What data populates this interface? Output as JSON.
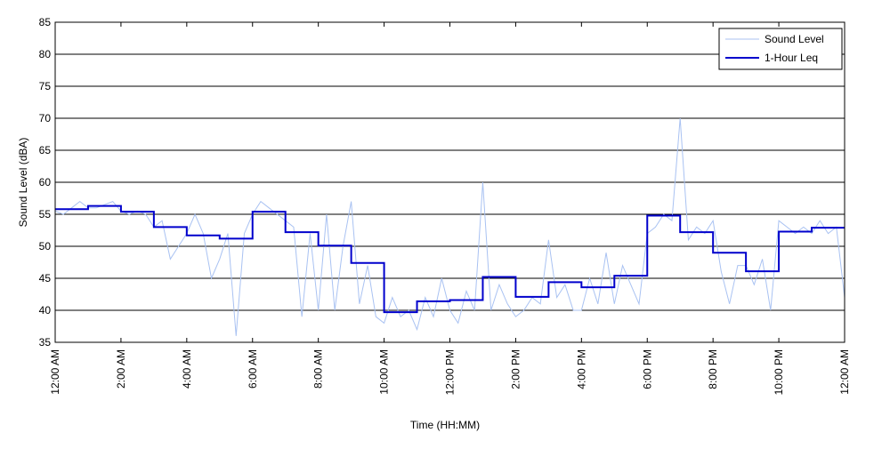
{
  "chart_data": {
    "type": "line",
    "xlabel": "Time (HH:MM)",
    "ylabel": "Sound Level (dBA)",
    "xlim": [
      0,
      24
    ],
    "ylim": [
      35,
      85
    ],
    "yticks": [
      35,
      40,
      45,
      50,
      55,
      60,
      65,
      70,
      75,
      80,
      85
    ],
    "xticks": [
      {
        "value": 0,
        "label": "12:00 AM"
      },
      {
        "value": 2,
        "label": "2:00 AM"
      },
      {
        "value": 4,
        "label": "4:00 AM"
      },
      {
        "value": 6,
        "label": "6:00 AM"
      },
      {
        "value": 8,
        "label": "8:00 AM"
      },
      {
        "value": 10,
        "label": "10:00 AM"
      },
      {
        "value": 12,
        "label": "12:00 PM"
      },
      {
        "value": 14,
        "label": "2:00 PM"
      },
      {
        "value": 16,
        "label": "4:00 PM"
      },
      {
        "value": 18,
        "label": "6:00 PM"
      },
      {
        "value": 20,
        "label": "8:00 PM"
      },
      {
        "value": 22,
        "label": "10:00 PM"
      },
      {
        "value": 24,
        "label": "12:00 AM"
      }
    ],
    "grid": "y",
    "legend": "upper right",
    "series": [
      {
        "name": "Sound Level",
        "color": "#a9c2f2",
        "step": false,
        "x": [
          0,
          0.25,
          0.5,
          0.75,
          1,
          1.25,
          1.5,
          1.75,
          2,
          2.25,
          2.5,
          2.75,
          3,
          3.25,
          3.5,
          3.75,
          4,
          4.25,
          4.5,
          4.75,
          5,
          5.25,
          5.5,
          5.75,
          6,
          6.25,
          6.5,
          6.75,
          7,
          7.25,
          7.5,
          7.75,
          8,
          8.25,
          8.5,
          8.75,
          9,
          9.25,
          9.5,
          9.75,
          10,
          10.25,
          10.5,
          10.75,
          11,
          11.25,
          11.5,
          11.75,
          12,
          12.25,
          12.5,
          12.75,
          13,
          13.25,
          13.5,
          13.75,
          14,
          14.25,
          14.5,
          14.75,
          15,
          15.25,
          15.5,
          15.75,
          16,
          16.25,
          16.5,
          16.75,
          17,
          17.25,
          17.5,
          17.75,
          18,
          18.25,
          18.5,
          18.75,
          19,
          19.25,
          19.5,
          19.75,
          20,
          20.25,
          20.5,
          20.75,
          21,
          21.25,
          21.5,
          21.75,
          22,
          22.25,
          22.5,
          22.75,
          23,
          23.25,
          23.5,
          23.75,
          24
        ],
        "values": [
          55.5,
          55,
          56,
          57,
          56,
          56,
          56.5,
          57,
          55.5,
          55,
          55.5,
          55,
          53,
          54,
          48,
          50,
          52,
          55,
          52,
          45,
          48,
          52,
          36,
          52,
          55,
          57,
          56,
          55,
          54,
          53,
          39,
          52,
          40,
          55,
          40,
          50,
          57,
          41,
          47,
          39,
          38,
          42,
          39,
          40,
          37,
          42,
          39,
          45,
          40,
          38,
          43,
          40,
          60,
          40,
          44,
          41,
          39,
          40,
          42,
          41,
          51,
          42,
          44,
          40,
          40,
          45,
          41,
          49,
          41,
          47,
          44,
          41,
          52,
          53,
          55,
          54,
          70,
          51,
          53,
          52,
          54,
          46,
          41,
          47,
          47,
          44,
          48,
          40,
          54,
          53,
          52,
          53,
          52,
          54,
          52,
          53,
          42
        ]
      },
      {
        "name": "1-Hour Leq",
        "color": "#0000cc",
        "step": true,
        "x": [
          0,
          1,
          2,
          3,
          4,
          5,
          6,
          7,
          8,
          9,
          10,
          11,
          12,
          13,
          14,
          15,
          16,
          17,
          18,
          19,
          20,
          21,
          22,
          23,
          24
        ],
        "values": [
          55.8,
          56.3,
          55.4,
          53.0,
          51.7,
          51.2,
          55.4,
          52.2,
          50.1,
          47.4,
          39.7,
          41.4,
          41.6,
          45.2,
          42.1,
          44.4,
          43.6,
          45.4,
          54.8,
          52.2,
          49.0,
          46.1,
          52.3,
          52.9,
          52.9
        ]
      }
    ]
  }
}
